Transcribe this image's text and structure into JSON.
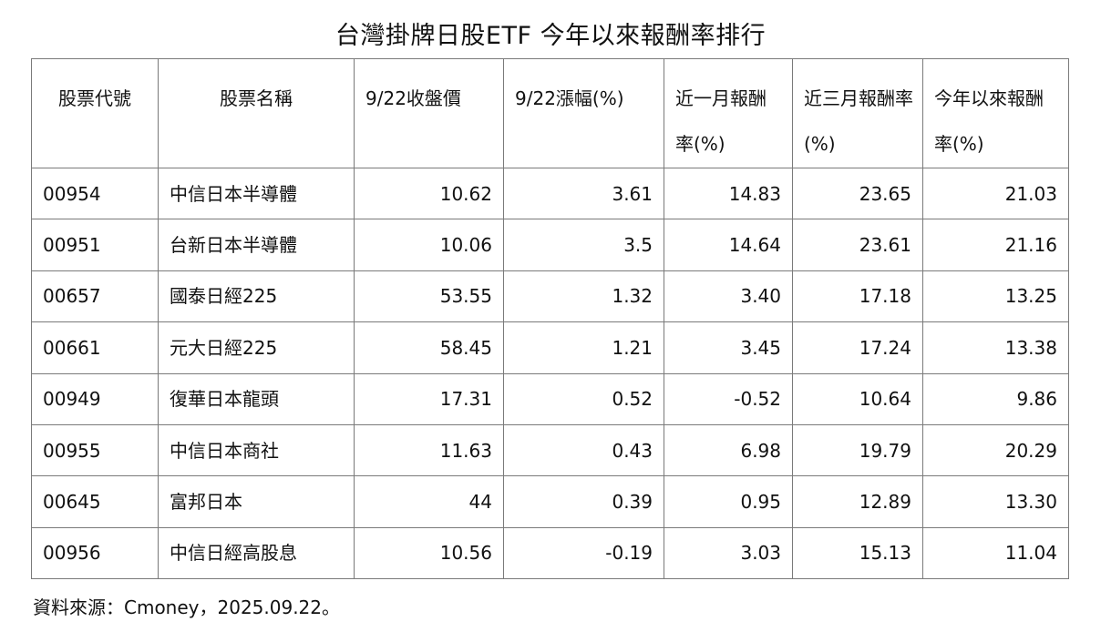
{
  "title": "台灣掛牌日股ETF 今年以來報酬率排行",
  "headers": {
    "code": "股票代號",
    "name": "股票名稱",
    "close": "9/22收盤價",
    "change": "9/22漲幅(%)",
    "m1": "近一月報酬率(%)",
    "m3": "近三月報酬率(%)",
    "ytd": "今年以來報酬率(%)"
  },
  "rows": [
    {
      "code": "00954",
      "name": "中信日本半導體",
      "close": "10.62",
      "change": "3.61",
      "m1": "14.83",
      "m3": "23.65",
      "ytd": "21.03"
    },
    {
      "code": "00951",
      "name": "台新日本半導體",
      "close": "10.06",
      "change": "3.5",
      "m1": "14.64",
      "m3": "23.61",
      "ytd": "21.16"
    },
    {
      "code": "00657",
      "name": "國泰日經225",
      "close": "53.55",
      "change": "1.32",
      "m1": "3.40",
      "m3": "17.18",
      "ytd": "13.25"
    },
    {
      "code": "00661",
      "name": "元大日經225",
      "close": "58.45",
      "change": "1.21",
      "m1": "3.45",
      "m3": "17.24",
      "ytd": "13.38"
    },
    {
      "code": "00949",
      "name": "復華日本龍頭",
      "close": "17.31",
      "change": "0.52",
      "m1": "-0.52",
      "m3": "10.64",
      "ytd": "9.86"
    },
    {
      "code": "00955",
      "name": "中信日本商社",
      "close": "11.63",
      "change": "0.43",
      "m1": "6.98",
      "m3": "19.79",
      "ytd": "20.29"
    },
    {
      "code": "00645",
      "name": "富邦日本",
      "close": "44",
      "change": "0.39",
      "m1": "0.95",
      "m3": "12.89",
      "ytd": "13.30"
    },
    {
      "code": "00956",
      "name": "中信日經高股息",
      "close": "10.56",
      "change": "-0.19",
      "m1": "3.03",
      "m3": "15.13",
      "ytd": "11.04"
    }
  ],
  "source": "資料來源：Cmoney，2025.09.22。"
}
